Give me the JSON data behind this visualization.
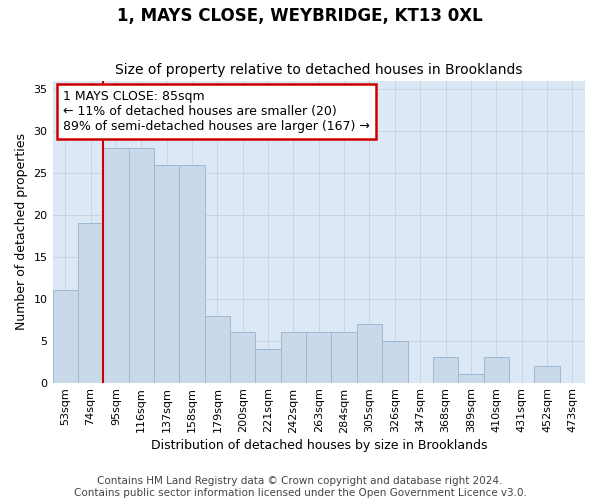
{
  "title": "1, MAYS CLOSE, WEYBRIDGE, KT13 0XL",
  "subtitle": "Size of property relative to detached houses in Brooklands",
  "xlabel": "Distribution of detached houses by size in Brooklands",
  "ylabel": "Number of detached properties",
  "categories": [
    "53sqm",
    "74sqm",
    "95sqm",
    "116sqm",
    "137sqm",
    "158sqm",
    "179sqm",
    "200sqm",
    "221sqm",
    "242sqm",
    "263sqm",
    "284sqm",
    "305sqm",
    "326sqm",
    "347sqm",
    "368sqm",
    "389sqm",
    "410sqm",
    "431sqm",
    "452sqm",
    "473sqm"
  ],
  "bar_values": [
    11,
    19,
    28,
    28,
    26,
    26,
    8,
    6,
    4,
    6,
    6,
    6,
    7,
    5,
    0,
    3,
    1,
    3,
    0,
    2,
    0
  ],
  "bar_color": "#c9d9ea",
  "bar_edge_color": "#a0b8d0",
  "vline_x_index": 1.5,
  "vline_color": "#cc0000",
  "annotation_text": "1 MAYS CLOSE: 85sqm\n← 11% of detached houses are smaller (20)\n89% of semi-detached houses are larger (167) →",
  "annotation_box_color": "#ffffff",
  "annotation_box_edge": "#cc0000",
  "ylim": [
    0,
    36
  ],
  "yticks": [
    0,
    5,
    10,
    15,
    20,
    25,
    30,
    35
  ],
  "grid_color": "#c8d4e0",
  "background_color": "#dce8f5",
  "plot_bg_color": "#ffffff",
  "footer_text": "Contains HM Land Registry data © Crown copyright and database right 2024.\nContains public sector information licensed under the Open Government Licence v3.0.",
  "title_fontsize": 12,
  "subtitle_fontsize": 10,
  "axis_label_fontsize": 9,
  "tick_fontsize": 8,
  "annotation_fontsize": 9,
  "footer_fontsize": 7.5
}
